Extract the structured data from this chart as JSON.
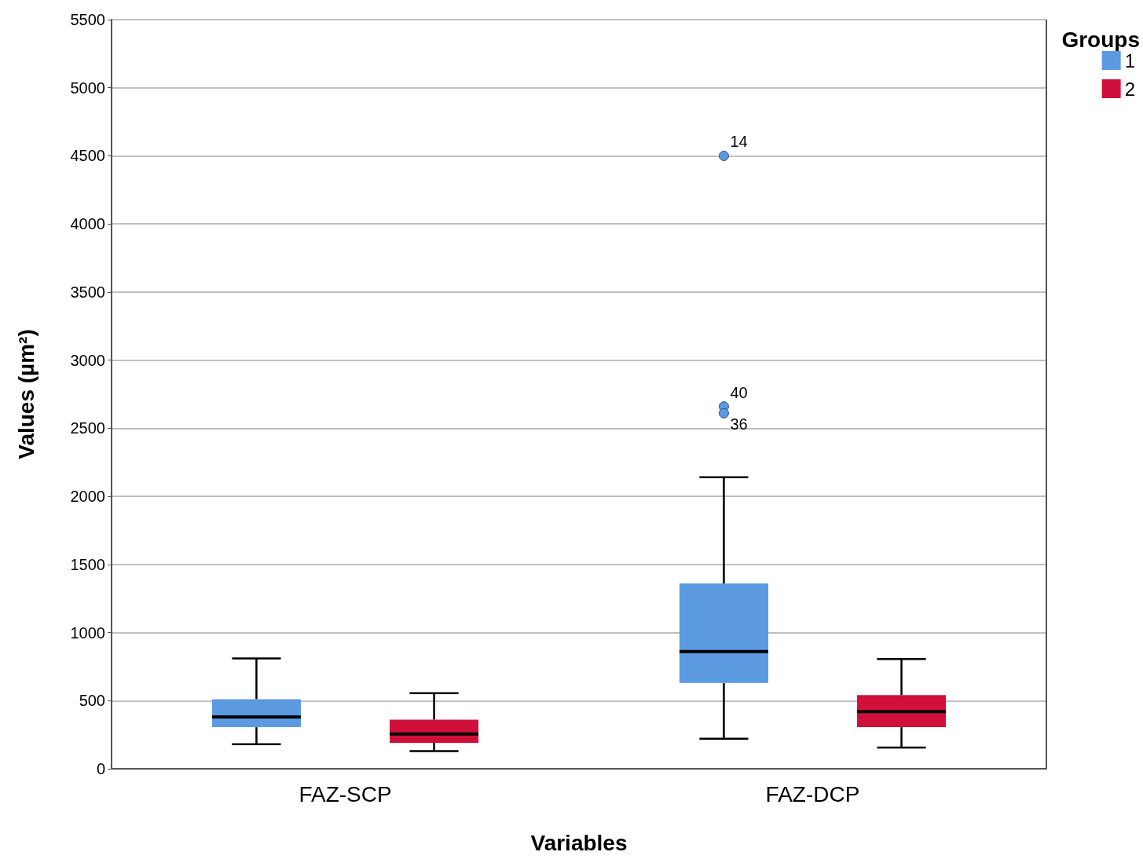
{
  "chart_data": {
    "type": "box",
    "xlabel": "Variables",
    "ylabel": "Values (µm²)",
    "legend_title": "Groups",
    "legend": "top right",
    "grid": true,
    "categories": [
      "FAZ-SCP",
      "FAZ-DCP"
    ],
    "ylim": [
      0,
      5500
    ],
    "yticks": [
      0,
      500,
      1000,
      1500,
      2000,
      2500,
      3000,
      3500,
      4000,
      4500,
      5000,
      5500
    ],
    "series": [
      {
        "name": "1",
        "color": "#5b9ae0",
        "boxes": [
          {
            "low": 180,
            "q1": 305,
            "median": 380,
            "q3": 510,
            "high": 810
          },
          {
            "low": 220,
            "q1": 630,
            "median": 860,
            "q3": 1360,
            "high": 2140,
            "outliers": [
              4500,
              2660,
              2610
            ]
          }
        ]
      },
      {
        "name": "2",
        "color": "#d0103a",
        "boxes": [
          {
            "low": 130,
            "q1": 190,
            "median": 255,
            "q3": 360,
            "high": 555
          },
          {
            "low": 155,
            "q1": 305,
            "median": 420,
            "q3": 540,
            "high": 805
          }
        ]
      }
    ],
    "annotations": [
      "14",
      "40",
      "36"
    ]
  }
}
